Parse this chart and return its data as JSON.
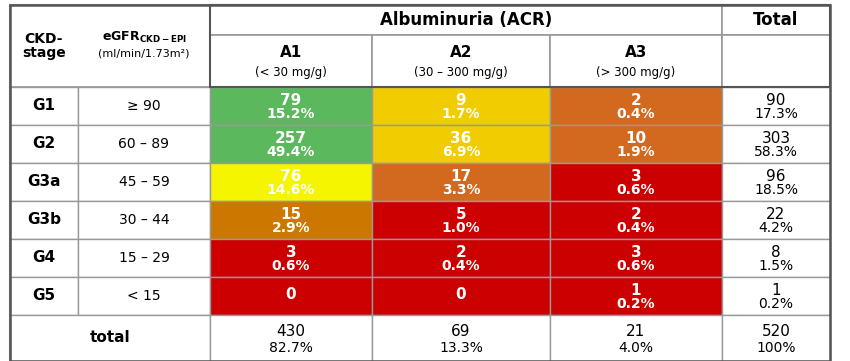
{
  "title_albuminuria": "Albuminuria (ACR)",
  "title_total": "Total",
  "col_headers": [
    "A1",
    "A2",
    "A3"
  ],
  "col_subheaders": [
    "(< 30 mg/g)",
    "(30 – 300 mg/g)",
    "(> 300 mg/g)"
  ],
  "row_headers": [
    "G1",
    "G2",
    "G3a",
    "G3b",
    "G4",
    "G5",
    "total"
  ],
  "row_subheaders": [
    "≥ 90",
    "60 – 89",
    "45 – 59",
    "30 – 44",
    "15 – 29",
    "< 15",
    ""
  ],
  "data": [
    [
      [
        "79",
        "15.2%"
      ],
      [
        "9",
        "1.7%"
      ],
      [
        "2",
        "0.4%"
      ],
      [
        "90",
        "17.3%"
      ]
    ],
    [
      [
        "257",
        "49.4%"
      ],
      [
        "36",
        "6.9%"
      ],
      [
        "10",
        "1.9%"
      ],
      [
        "303",
        "58.3%"
      ]
    ],
    [
      [
        "76",
        "14.6%"
      ],
      [
        "17",
        "3.3%"
      ],
      [
        "3",
        "0.6%"
      ],
      [
        "96",
        "18.5%"
      ]
    ],
    [
      [
        "15",
        "2.9%"
      ],
      [
        "5",
        "1.0%"
      ],
      [
        "2",
        "0.4%"
      ],
      [
        "22",
        "4.2%"
      ]
    ],
    [
      [
        "3",
        "0.6%"
      ],
      [
        "2",
        "0.4%"
      ],
      [
        "3",
        "0.6%"
      ],
      [
        "8",
        "1.5%"
      ]
    ],
    [
      [
        "0",
        ""
      ],
      [
        "0",
        ""
      ],
      [
        "1",
        "0.2%"
      ],
      [
        "1",
        "0.2%"
      ]
    ],
    [
      [
        "430",
        "82.7%"
      ],
      [
        "69",
        "13.3%"
      ],
      [
        "21",
        "4.0%"
      ],
      [
        "520",
        "100%"
      ]
    ]
  ],
  "cell_colors": [
    [
      "#5cb85c",
      "#f0cc00",
      "#d2691e",
      "none"
    ],
    [
      "#5cb85c",
      "#f0cc00",
      "#d2691e",
      "none"
    ],
    [
      "#f5f500",
      "#d2691e",
      "#cc0000",
      "none"
    ],
    [
      "#cc7700",
      "#cc0000",
      "#cc0000",
      "none"
    ],
    [
      "#cc0000",
      "#cc0000",
      "#cc0000",
      "none"
    ],
    [
      "#cc0000",
      "#cc0000",
      "#cc0000",
      "none"
    ],
    [
      "none",
      "none",
      "none",
      "none"
    ]
  ],
  "text_colors_data": [
    [
      "#ffffff",
      "#ffffff",
      "#ffffff",
      "#000000"
    ],
    [
      "#ffffff",
      "#ffffff",
      "#ffffff",
      "#000000"
    ],
    [
      "#ffffff",
      "#ffffff",
      "#ffffff",
      "#000000"
    ],
    [
      "#ffffff",
      "#ffffff",
      "#ffffff",
      "#000000"
    ],
    [
      "#ffffff",
      "#ffffff",
      "#ffffff",
      "#000000"
    ],
    [
      "#ffffff",
      "#ffffff",
      "#ffffff",
      "#000000"
    ],
    [
      "#000000",
      "#000000",
      "#000000",
      "#000000"
    ]
  ],
  "background_color": "#ffffff",
  "border_color": "#999999"
}
